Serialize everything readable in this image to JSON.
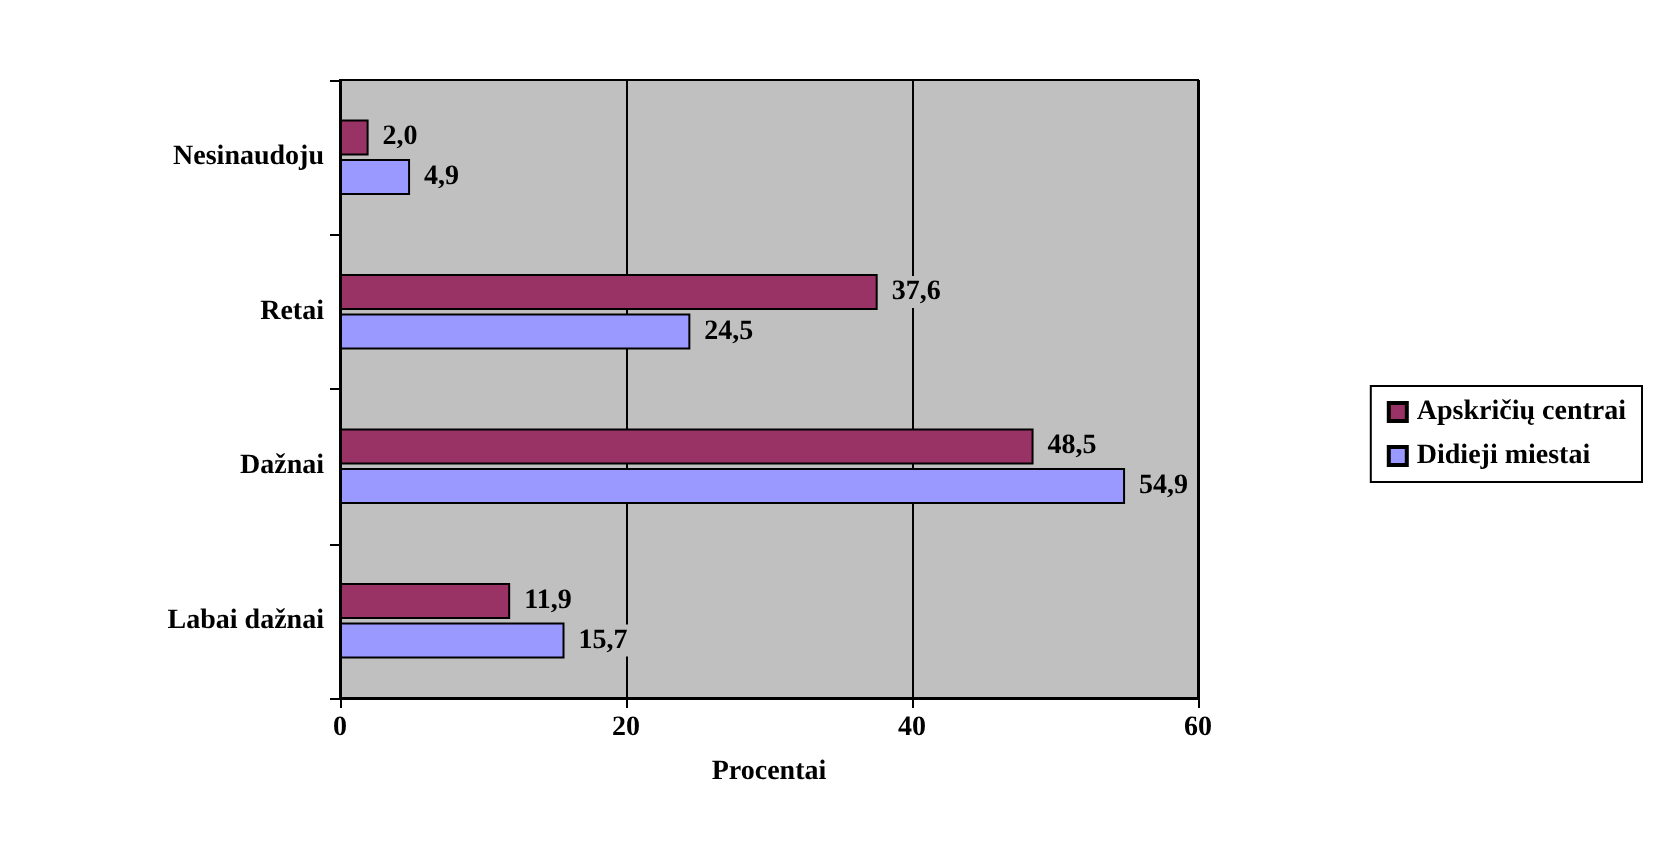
{
  "chart_data": {
    "type": "bar",
    "orientation": "horizontal",
    "xlabel": "Procentai",
    "categories": [
      "Nesinaudoju",
      "Retai",
      "Dažnai",
      "Labai dažnai"
    ],
    "series": [
      {
        "name": "Apskričių centrai",
        "color": "#993366",
        "values": [
          2.0,
          37.6,
          48.5,
          11.9
        ],
        "value_labels": [
          "2,0",
          "37,6",
          "48,5",
          "11,9"
        ]
      },
      {
        "name": "Didieji miestai",
        "color": "#9999ff",
        "values": [
          4.9,
          24.5,
          54.9,
          15.7
        ],
        "value_labels": [
          "4,9",
          "24,5",
          "54,9",
          "15,7"
        ]
      }
    ],
    "xlim": [
      0,
      60
    ],
    "xticks": [
      0,
      20,
      40,
      60
    ],
    "grid": "x",
    "legend": "right"
  }
}
